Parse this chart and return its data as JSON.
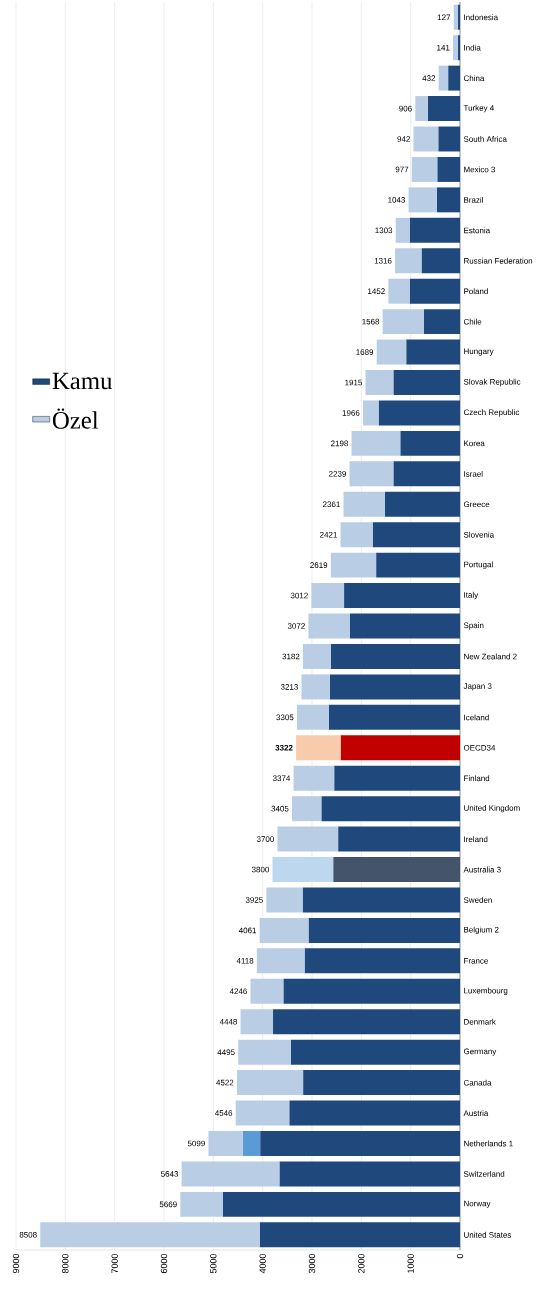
{
  "chart_data": {
    "type": "bar",
    "orientation": "horizontal",
    "stacked": true,
    "categories": [
      "Indonesia",
      "India",
      "China",
      "Turkey 4",
      "South Africa",
      "Mexico 3",
      "Brazil",
      "Estonia",
      "Russian Federation",
      "Poland",
      "Chile",
      "Hungary",
      "Slovak Republic",
      "Czech Republic",
      "Korea",
      "Israel",
      "Greece",
      "Slovenia",
      "Portugal",
      "Italy",
      "Spain",
      "New Zealand 2",
      "Japan 3",
      "Iceland",
      "OECD34",
      "Finland",
      "United Kingdom",
      "Ireland",
      "Australia 3",
      "Sweden",
      "Belgium 2",
      "France",
      "Luxembourg",
      "Denmark",
      "Germany",
      "Canada",
      "Austria",
      "Netherlands 1",
      "Switzerland",
      "Norway",
      "United States"
    ],
    "series": [
      {
        "name": "Kamu",
        "color": "#1f497d",
        "colors": [
          "#1f497d",
          "#1f497d",
          "#1f497d",
          "#1f497d",
          "#1f497d",
          "#1f497d",
          "#1f497d",
          "#1f497d",
          "#1f497d",
          "#1f497d",
          "#1f497d",
          "#1f497d",
          "#1f497d",
          "#1f497d",
          "#1f497d",
          "#1f497d",
          "#1f497d",
          "#1f497d",
          "#1f497d",
          "#1f497d",
          "#1f497d",
          "#1f497d",
          "#1f497d",
          "#1f497d",
          "#c00000",
          "#1f497d",
          "#1f497d",
          "#1f497d",
          "#44546a",
          "#1f497d",
          "#1f497d",
          "#1f497d",
          "#1f497d",
          "#1f497d",
          "#1f497d",
          "#1f497d",
          "#1f497d",
          "#1f497d",
          "#1f497d",
          "#1f497d",
          "#1f497d"
        ],
        "values": [
          40,
          40,
          240,
          650,
          440,
          460,
          470,
          1020,
          780,
          1020,
          730,
          1090,
          1350,
          1650,
          1210,
          1350,
          1520,
          1770,
          1700,
          2350,
          2230,
          2620,
          2640,
          2660,
          2420,
          2550,
          2810,
          2470,
          2570,
          3190,
          3070,
          3150,
          3580,
          3790,
          3430,
          3180,
          3460,
          4050,
          3660,
          4810,
          4060
        ]
      },
      {
        "color": "#5b9bd5",
        "values": [
          null,
          null,
          null,
          null,
          null,
          null,
          null,
          null,
          null,
          null,
          null,
          null,
          null,
          null,
          null,
          null,
          null,
          null,
          null,
          null,
          null,
          null,
          null,
          null,
          null,
          null,
          null,
          null,
          null,
          null,
          null,
          null,
          null,
          null,
          null,
          null,
          null,
          350,
          null,
          null,
          null
        ]
      },
      {
        "name": "Özel",
        "color": "#b9cde5",
        "colors": [
          "#b9cde5",
          "#b9cde5",
          "#b9cde5",
          "#b9cde5",
          "#b9cde5",
          "#b9cde5",
          "#b9cde5",
          "#b9cde5",
          "#b9cde5",
          "#b9cde5",
          "#b9cde5",
          "#b9cde5",
          "#b9cde5",
          "#b9cde5",
          "#b9cde5",
          "#b9cde5",
          "#b9cde5",
          "#b9cde5",
          "#b9cde5",
          "#b9cde5",
          "#b9cde5",
          "#b9cde5",
          "#b9cde5",
          "#b9cde5",
          "#f8cbad",
          "#b9cde5",
          "#b9cde5",
          "#b9cde5",
          "#bdd7ee",
          "#b9cde5",
          "#b9cde5",
          "#b9cde5",
          "#b9cde5",
          "#b9cde5",
          "#b9cde5",
          "#b9cde5",
          "#b9cde5",
          "#b9cde5",
          "#b9cde5",
          "#b9cde5",
          "#b9cde5"
        ],
        "values": [
          87,
          101,
          192,
          256,
          502,
          517,
          573,
          283,
          536,
          432,
          838,
          599,
          565,
          316,
          988,
          889,
          841,
          651,
          919,
          662,
          842,
          562,
          573,
          645,
          902,
          824,
          595,
          1230,
          1230,
          735,
          991,
          968,
          666,
          658,
          1065,
          1342,
          1086,
          699,
          1983,
          859,
          4448
        ]
      }
    ],
    "totals": [
      "127",
      "141",
      "432",
      "906",
      "942",
      "977",
      "1043",
      "1303",
      "1316",
      "1452",
      "1568",
      "1689",
      "1915",
      "1966",
      "2198",
      "2239",
      "2361",
      "2421",
      "2619",
      "3012",
      "3072",
      "3182",
      "3213",
      "3305",
      "**3322**",
      "3374",
      "3405",
      "3700",
      "3800",
      "3925",
      "4061",
      "4118",
      "4246",
      "4448",
      "4495",
      "4522",
      "4546",
      "5099",
      "5643",
      "5669",
      "8508"
    ],
    "xlim": [
      9000,
      0
    ],
    "xticks": [
      0,
      1000,
      2000,
      3000,
      4000,
      5000,
      6000,
      7000,
      8000,
      9000
    ],
    "grid": "x",
    "legend": "left"
  }
}
